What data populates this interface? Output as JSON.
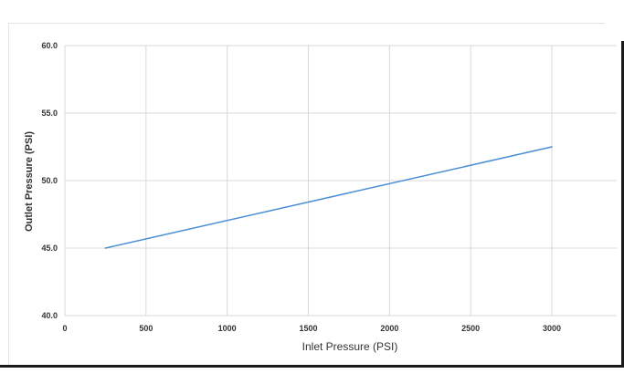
{
  "chart_data": {
    "type": "line",
    "title": "",
    "xlabel": "Inlet Pressure (PSI)",
    "ylabel": "Outlet Pressure (PSI)",
    "xlim": [
      0,
      3250
    ],
    "ylim": [
      40.0,
      60.0
    ],
    "x_ticks": [
      "0",
      "500",
      "1000",
      "1500",
      "2000",
      "2500",
      "3000"
    ],
    "y_ticks": [
      "40.0",
      "45.0",
      "50.0",
      "55.0",
      "60.0"
    ],
    "grid": true,
    "legend": "none",
    "series": [
      {
        "color": "#4a8fd4",
        "x": [
          250,
          3000
        ],
        "y": [
          45.0,
          52.5
        ]
      }
    ]
  }
}
